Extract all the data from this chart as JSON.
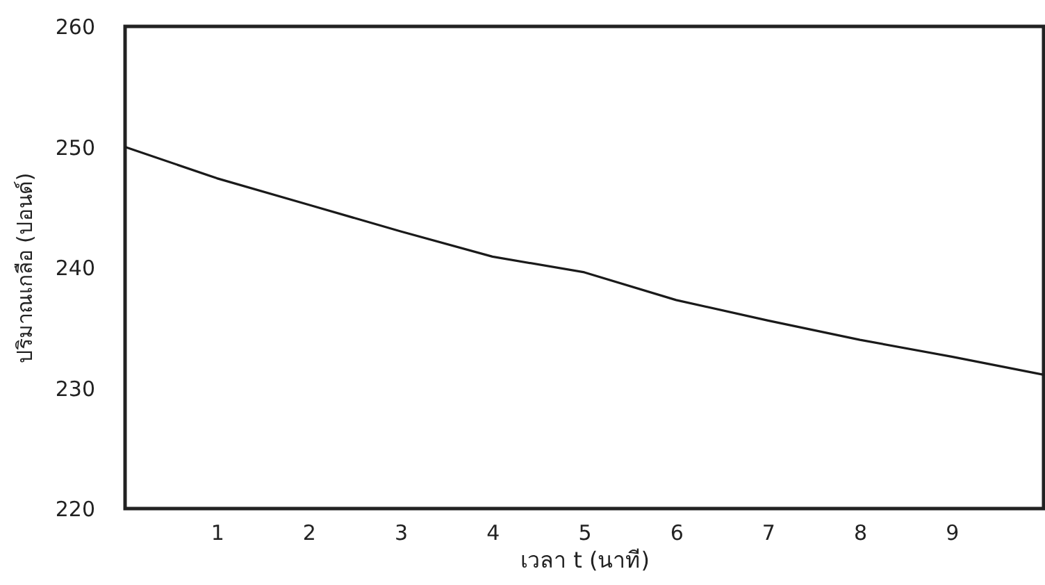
{
  "chart_data": {
    "type": "line",
    "xlabel": "เวลา t (นาที)",
    "ylabel": "ปริมาณเกลือ (ปอนด์)",
    "x": [
      0,
      1,
      2,
      3,
      4,
      5,
      6,
      7,
      8,
      9,
      10
    ],
    "series": [
      {
        "color": "#1a1a1a",
        "values": [
          250.0,
          247.4,
          245.2,
          243.0,
          240.9,
          239.6,
          237.3,
          235.6,
          234.0,
          232.6,
          231.1
        ]
      }
    ],
    "xlim": [
      0,
      10
    ],
    "xticks": [
      1,
      2,
      3,
      4,
      5,
      6,
      7,
      8,
      9
    ],
    "ylim": [
      220,
      260
    ],
    "yticks": [
      220,
      230,
      240,
      250,
      260
    ],
    "grid": false,
    "legend": false,
    "marker": "none",
    "line_style": "solid"
  }
}
